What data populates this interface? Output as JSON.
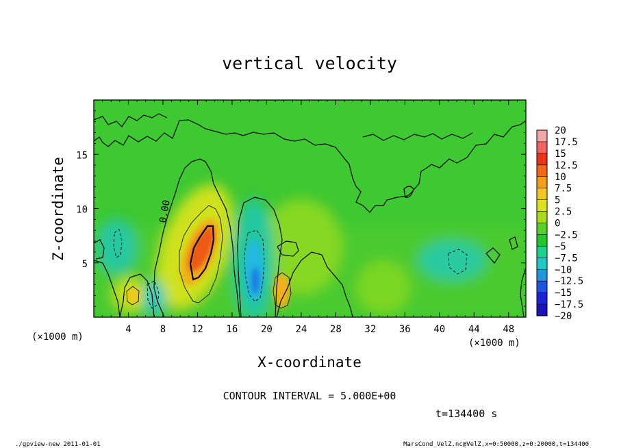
{
  "chart_data": {
    "type": "heatmap",
    "title": "vertical velocity",
    "xlabel": "X-coordinate",
    "ylabel": "Z-coordinate",
    "x_unit_label": "(×1000 m)",
    "z_unit_label": "(×1000 m)",
    "xlim": [
      0,
      50
    ],
    "ylim": [
      0,
      20
    ],
    "x_ticks": [
      4,
      8,
      12,
      16,
      20,
      24,
      28,
      32,
      36,
      40,
      44,
      48
    ],
    "y_ticks": [
      5,
      10,
      15
    ],
    "contour_interval_text": "CONTOUR INTERVAL = 5.000E+00",
    "time_text": "t=134400 s",
    "contour_label": "0.00",
    "colorbar": {
      "levels": [
        20,
        17.5,
        15,
        12.5,
        10,
        7.5,
        5,
        2.5,
        0,
        -2.5,
        -5,
        -7.5,
        -10,
        -12.5,
        -15,
        -17.5,
        -20
      ],
      "colors": [
        "#f4a6a6",
        "#f26262",
        "#ec3417",
        "#f06818",
        "#f59d18",
        "#f3c81c",
        "#dde21a",
        "#a8dc1a",
        "#58cf26",
        "#22c82a",
        "#1bd28a",
        "#1ec8c8",
        "#1f96e0",
        "#1d55e6",
        "#1d23d8",
        "#1a14b8",
        "#5a10b0"
      ]
    },
    "features": [
      {
        "kind": "updraft",
        "x": 12.5,
        "z": 6.5,
        "peak": 12.5
      },
      {
        "kind": "downdraft",
        "x": 18.5,
        "z": 4.5,
        "peak": -7.5
      },
      {
        "kind": "updraft",
        "x": 21.5,
        "z": 2.5,
        "peak": 7.5
      },
      {
        "kind": "updraft",
        "x": 4.5,
        "z": 2.0,
        "peak": 5
      },
      {
        "kind": "downdraft",
        "x": 6.5,
        "z": 2.0,
        "peak": -5
      },
      {
        "kind": "downdraft",
        "x": 5.0,
        "z": 7.0,
        "peak": -2.5
      },
      {
        "kind": "downdraft",
        "x": 42.0,
        "z": 5.5,
        "peak": -2.5
      }
    ]
  },
  "footer": {
    "left": "./gpview-new  2011-01-01",
    "right": "MarsCond_VelZ.nc@VelZ,x=0:50000,z=0:20000,t=134400"
  }
}
